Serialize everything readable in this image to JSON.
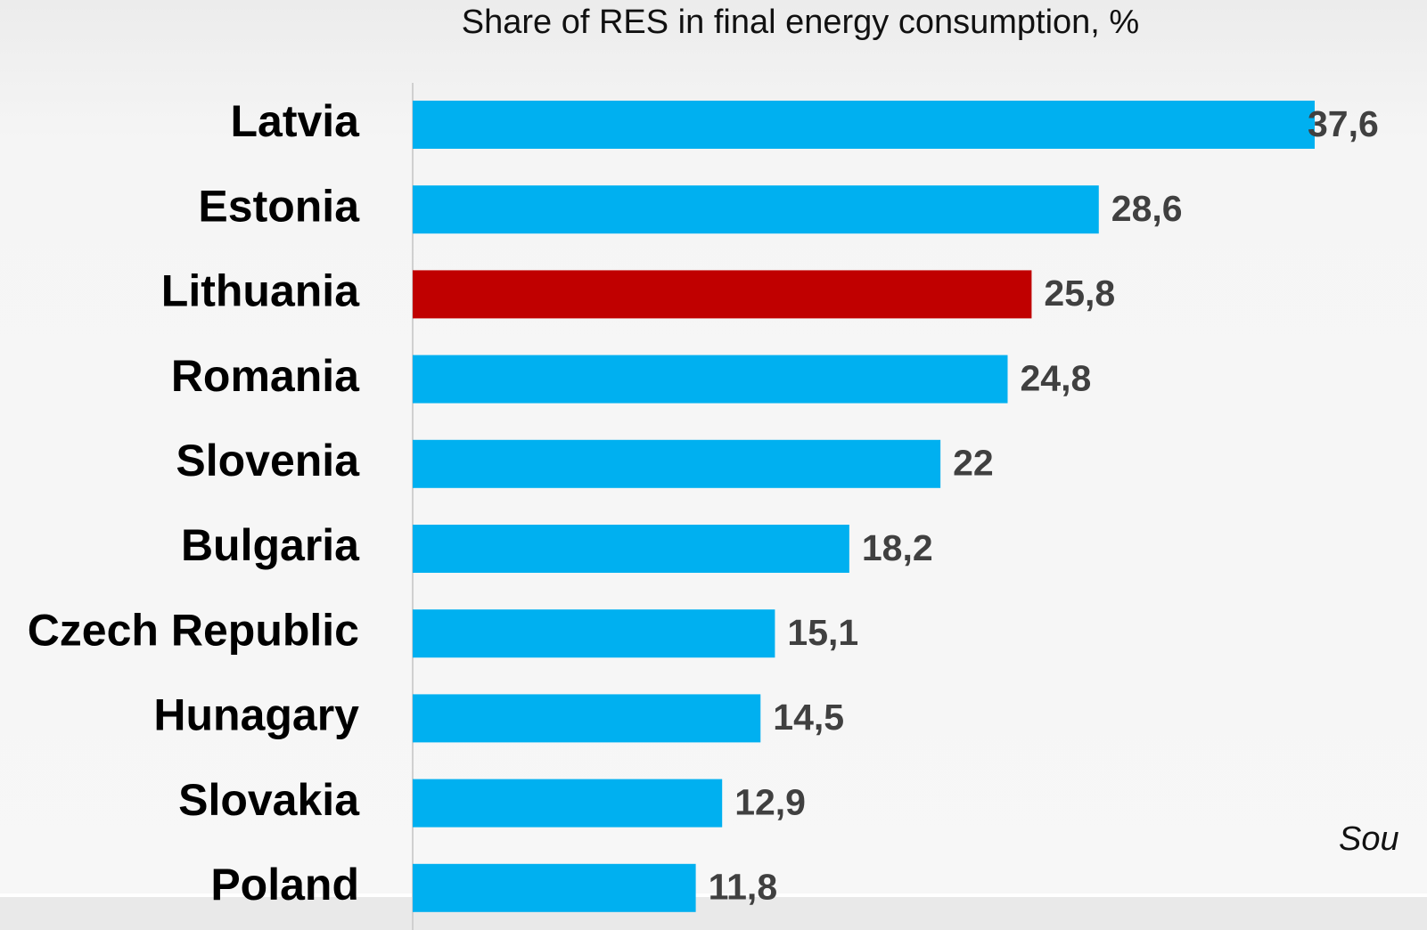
{
  "chart_data": {
    "type": "bar",
    "orientation": "horizontal",
    "title": "Share of RES in final energy consumption, %",
    "categories": [
      "Latvia",
      "Estonia",
      "Lithuania",
      "Romania",
      "Slovenia",
      "Bulgaria",
      "Czech Republic",
      "Hunagary",
      "Slovakia",
      "Poland"
    ],
    "values": [
      37.6,
      28.6,
      25.8,
      24.8,
      22,
      18.2,
      15.1,
      14.5,
      12.9,
      11.8
    ],
    "value_labels": [
      "37,6",
      "28,6",
      "25,8",
      "24,8",
      "22",
      "18,2",
      "15,1",
      "14,5",
      "12,9",
      "11,8"
    ],
    "colors": [
      "#00b0f0",
      "#00b0f0",
      "#c00000",
      "#00b0f0",
      "#00b0f0",
      "#00b0f0",
      "#00b0f0",
      "#00b0f0",
      "#00b0f0",
      "#00b0f0"
    ],
    "annotation": "Sou"
  }
}
